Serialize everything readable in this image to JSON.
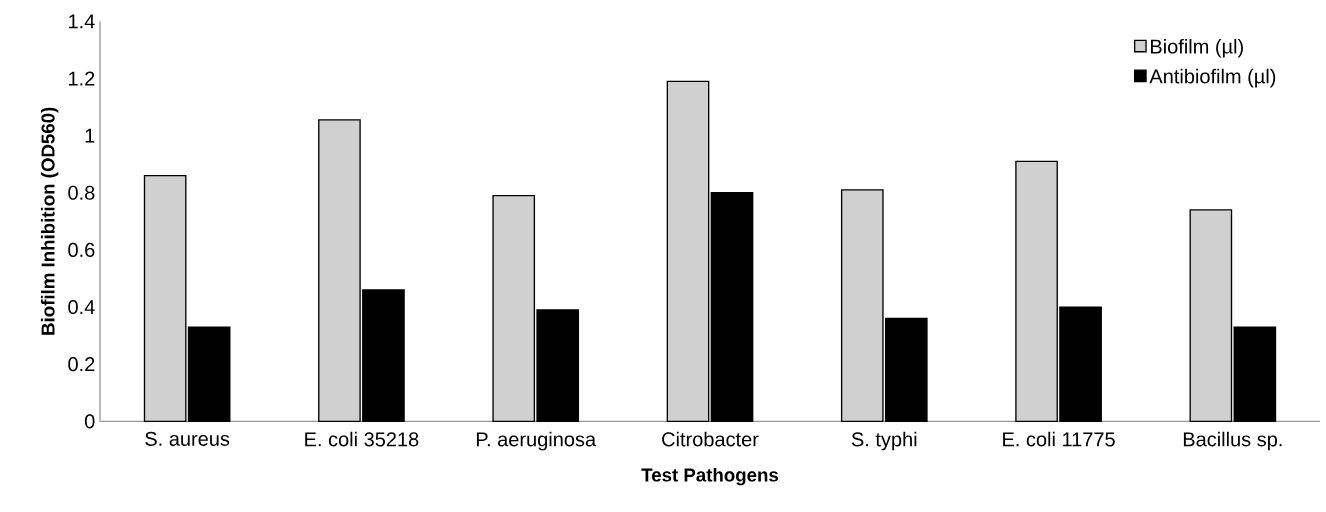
{
  "chart_data": {
    "type": "bar",
    "xlabel": "Test Pathogens",
    "ylabel": "Biofilm Inhibition (OD560)",
    "categories": [
      "S. aureus",
      "E. coli 35218",
      "P. aeruginosa",
      "Citrobacter",
      "S. typhi",
      "E. coli 11775",
      "Bacillus sp."
    ],
    "series": [
      {
        "name": "Biofilm (µl)",
        "color": "#d0d0d0",
        "values": [
          0.86,
          1.055,
          0.79,
          1.19,
          0.81,
          0.91,
          0.74
        ]
      },
      {
        "name": "Antibiofilm (µl)",
        "color": "#000000",
        "values": [
          0.33,
          0.46,
          0.39,
          0.8,
          0.36,
          0.4,
          0.33
        ]
      }
    ],
    "ylim": [
      0,
      1.4
    ],
    "yticks": [
      0,
      0.2,
      0.4,
      0.6,
      0.8,
      1,
      1.2,
      1.4
    ],
    "grid": false,
    "legend": "top right"
  }
}
